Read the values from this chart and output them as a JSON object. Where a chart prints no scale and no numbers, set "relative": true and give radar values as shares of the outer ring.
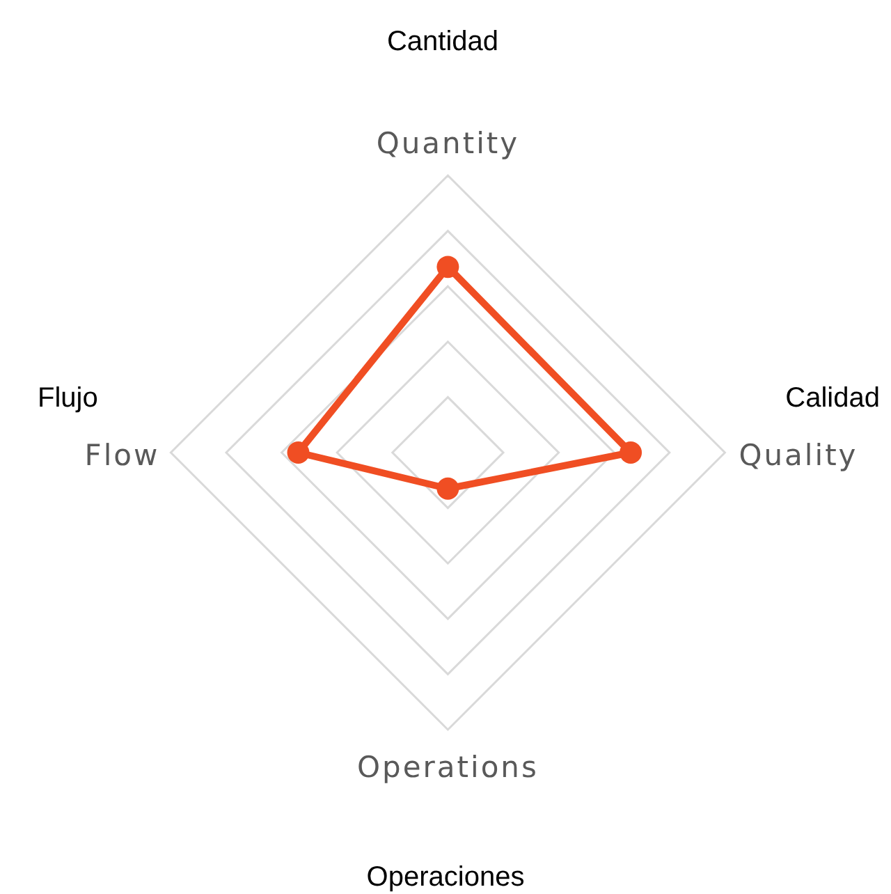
{
  "chart_data": {
    "type": "radar",
    "categories": [
      "Quantity",
      "Quality",
      "Operations",
      "Flow"
    ],
    "series": [
      {
        "color": "#f04e23",
        "values": [
          0.67,
          0.66,
          0.13,
          0.54
        ]
      }
    ],
    "relative": true,
    "grid": true,
    "marker": "circle",
    "line_style": "solid",
    "annotations": [
      "Cantidad",
      "Calidad",
      "Operaciones",
      "Flujo"
    ]
  }
}
